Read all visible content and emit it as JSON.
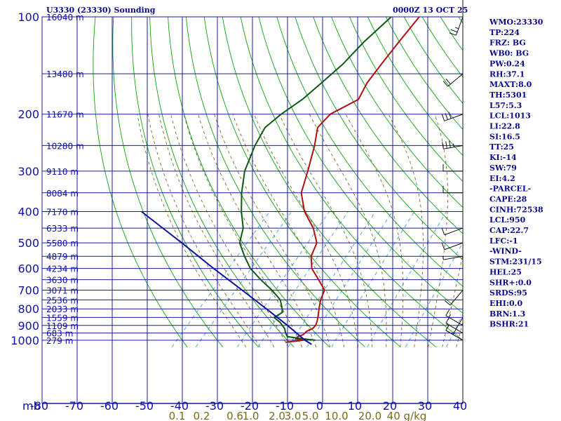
{
  "chart_data": {
    "type": "line",
    "title": "U3330 (23330) Sounding",
    "time": "0000Z 13 OCT 25",
    "pressure_ticks": [
      100,
      200,
      300,
      400,
      500,
      600,
      700,
      800,
      900,
      1000
    ],
    "pressure_unit": "mb",
    "temp_ticks": [
      -80,
      -70,
      -60,
      -50,
      -40,
      -30,
      -20,
      -10,
      0,
      10,
      20,
      30,
      40
    ],
    "temp_tick_labels": [
      "-80",
      "-70",
      "-60",
      "-50",
      "-40",
      "-30",
      "-20",
      "-10",
      "0",
      "10",
      "20",
      "30",
      "40"
    ],
    "mixing_ratio_labels": [
      {
        "label": "0.1",
        "t": -41.5
      },
      {
        "label": "0.2",
        "t": -34.5
      },
      {
        "label": "0.6",
        "t": -25
      },
      {
        "label": "1.0",
        "t": -20.5
      },
      {
        "label": "2.0",
        "t": -13
      },
      {
        "label": "3.0",
        "t": -8.5
      },
      {
        "label": "5.0",
        "t": -3.5
      },
      {
        "label": "10.0",
        "t": 4
      },
      {
        "label": "20.0",
        "t": 13.5
      },
      {
        "label": "40 g/kg",
        "t": 24
      }
    ],
    "heights": [
      {
        "p": 100,
        "label": "16040 m"
      },
      {
        "p": 150,
        "label": "13480 m"
      },
      {
        "p": 200,
        "label": "11670 m"
      },
      {
        "p": 250,
        "label": "10280 m"
      },
      {
        "p": 300,
        "label": "9110 m"
      },
      {
        "p": 350,
        "label": "8084 m"
      },
      {
        "p": 400,
        "label": "7170 m"
      },
      {
        "p": 450,
        "label": "6333 m"
      },
      {
        "p": 500,
        "label": "5580 m"
      },
      {
        "p": 550,
        "label": "4879 m"
      },
      {
        "p": 600,
        "label": "4234 m"
      },
      {
        "p": 650,
        "label": "3630 m"
      },
      {
        "p": 700,
        "label": "3071 m"
      },
      {
        "p": 750,
        "label": "2536 m"
      },
      {
        "p": 800,
        "label": "2033 m"
      },
      {
        "p": 850,
        "label": "1559 m"
      },
      {
        "p": 900,
        "label": "1109 m"
      },
      {
        "p": 950,
        "label": "683 m"
      },
      {
        "p": 1000,
        "label": "279 m"
      }
    ],
    "series": [
      {
        "name": "temperature",
        "color": "#b01010",
        "points": [
          [
            1015,
            -10
          ],
          [
            1000,
            -5.5
          ],
          [
            990,
            -8
          ],
          [
            975,
            -8
          ],
          [
            960,
            -7
          ],
          [
            940,
            -7
          ],
          [
            920,
            -6
          ],
          [
            900,
            -6
          ],
          [
            880,
            -6.5
          ],
          [
            850,
            -7.5
          ],
          [
            800,
            -9.5
          ],
          [
            750,
            -11.5
          ],
          [
            700,
            -13
          ],
          [
            650,
            -17.5
          ],
          [
            600,
            -22.5
          ],
          [
            550,
            -26
          ],
          [
            500,
            -28
          ],
          [
            450,
            -33
          ],
          [
            400,
            -40
          ],
          [
            350,
            -46
          ],
          [
            300,
            -50
          ],
          [
            250,
            -55
          ],
          [
            220,
            -59
          ],
          [
            200,
            -59
          ],
          [
            180,
            -55
          ],
          [
            160,
            -57
          ],
          [
            140,
            -58
          ],
          [
            120,
            -59
          ],
          [
            100,
            -60
          ]
        ]
      },
      {
        "name": "dewpoint",
        "color": "#0d5a10",
        "points": [
          [
            1000,
            -2
          ],
          [
            990,
            -6
          ],
          [
            975,
            -11
          ],
          [
            950,
            -12.5
          ],
          [
            920,
            -14
          ],
          [
            880,
            -17
          ],
          [
            850,
            -20
          ],
          [
            820,
            -19
          ],
          [
            800,
            -20
          ],
          [
            750,
            -23
          ],
          [
            700,
            -28
          ],
          [
            650,
            -34
          ],
          [
            600,
            -40
          ],
          [
            550,
            -45
          ],
          [
            500,
            -50
          ],
          [
            450,
            -53
          ],
          [
            400,
            -58
          ],
          [
            350,
            -63
          ],
          [
            300,
            -68
          ],
          [
            250,
            -72
          ],
          [
            220,
            -74
          ],
          [
            200,
            -73
          ],
          [
            180,
            -71
          ],
          [
            160,
            -70
          ],
          [
            140,
            -69
          ],
          [
            120,
            -69
          ],
          [
            100,
            -68
          ]
        ]
      },
      {
        "name": "parcel",
        "color": "#1010a0",
        "points": [
          [
            1030,
            -2
          ],
          [
            1000,
            -5
          ],
          [
            900,
            -14
          ],
          [
            800,
            -24.5
          ],
          [
            700,
            -36.5
          ],
          [
            600,
            -50.5
          ],
          [
            500,
            -66.5
          ],
          [
            400,
            -86.5
          ]
        ]
      }
    ],
    "indices": [
      "WMO:23330",
      "TP:224",
      "FRZ: BG",
      "WB0: BG",
      "PW:0.24",
      "RH:37.1",
      "MAXT:8.0",
      "TH:5301",
      "L57:5.3",
      "LCL:1013",
      "LI:22.8",
      "SI:16.5",
      "TT:25",
      "KI:-14",
      "SW:79",
      "EI:4.2",
      "-PARCEL-",
      "CAPE:28",
      "CINH:72538",
      "LCL:950",
      "CAP:22.7",
      "LFC:-1",
      "-WIND-",
      "STM:231/15",
      "HEL:25",
      "SHR+:0.0",
      "SRDS:95",
      "EHI:0.0",
      "BRN:1.3",
      "BSHR:21"
    ],
    "wind_barbs": [
      {
        "p": 100,
        "dir": 200,
        "kt": 25
      },
      {
        "p": 150,
        "dir": 230,
        "kt": 20
      },
      {
        "p": 200,
        "dir": 250,
        "kt": 30
      },
      {
        "p": 250,
        "dir": 260,
        "kt": 35
      },
      {
        "p": 300,
        "dir": 270,
        "kt": 10
      },
      {
        "p": 350,
        "dir": 270,
        "kt": 10
      },
      {
        "p": 450,
        "dir": 250,
        "kt": 10
      },
      {
        "p": 500,
        "dir": 250,
        "kt": 10
      },
      {
        "p": 550,
        "dir": 260,
        "kt": 5
      },
      {
        "p": 700,
        "dir": 220,
        "kt": 10
      },
      {
        "p": 850,
        "dir": 210,
        "kt": 10
      },
      {
        "p": 900,
        "dir": 300,
        "kt": 15
      },
      {
        "p": 950,
        "dir": 300,
        "kt": 10
      },
      {
        "p": 1000,
        "dir": 300,
        "kt": 10
      }
    ],
    "colors": {
      "grid": "#1a1aa0",
      "dry_adiabat": "#11a011",
      "moist_adiabat": "#6a5a10",
      "mixing_ratio": "#2b8fd0",
      "text": "#0a0a8a"
    }
  }
}
